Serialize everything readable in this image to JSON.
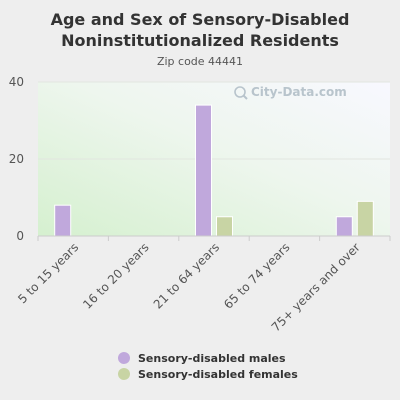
{
  "chart_data": {
    "type": "bar",
    "title": "Age and Sex of Sensory-Disabled Noninstitutionalized Residents",
    "subtitle": "Zip code 44441",
    "categories": [
      "5 to 15 years",
      "16 to 20 years",
      "21 to 64 years",
      "65 to 74 years",
      "75+ years and over"
    ],
    "series": [
      {
        "name": "Sensory-disabled males",
        "values": [
          8,
          0,
          34,
          0,
          5
        ],
        "color": "#c0a8dc"
      },
      {
        "name": "Sensory-disabled females",
        "values": [
          0,
          0,
          5,
          0,
          9
        ],
        "color": "#c8d4a4"
      }
    ],
    "yticks": [
      0,
      20,
      40
    ],
    "ylim": [
      0,
      40
    ],
    "grid": true,
    "legend_position": "bottom"
  },
  "watermark": {
    "text": "City-Data.com",
    "icon": "magnifier-icon"
  }
}
